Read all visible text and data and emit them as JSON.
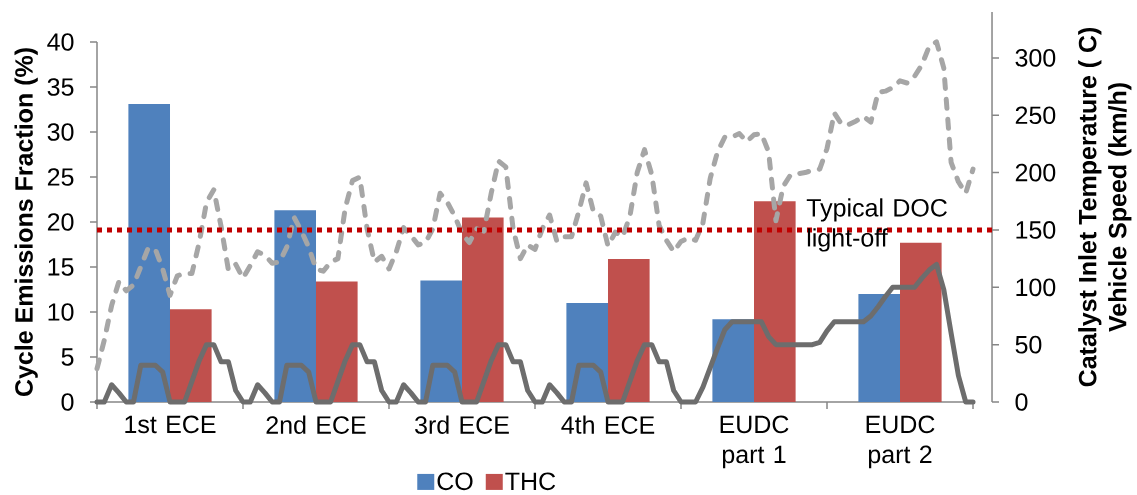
{
  "chart_data": [
    {
      "type": "bar",
      "categories": [
        "1st ECE",
        "2nd ECE",
        "3rd ECE",
        "4th ECE",
        "EUDC part 1",
        "EUDC part 2"
      ],
      "ylabel": "Cycle Emissions Fraction (%)",
      "ylim": [
        0,
        40
      ],
      "yticks": [
        0,
        5,
        10,
        15,
        20,
        25,
        30,
        35,
        40
      ],
      "legend": "bottom",
      "series": [
        {
          "name": "CO",
          "color": "#4f81bd",
          "values": [
            33.1,
            21.3,
            13.5,
            11.0,
            9.2,
            12.0
          ]
        },
        {
          "name": "THC",
          "color": "#c0504d",
          "values": [
            10.3,
            13.4,
            20.5,
            15.9,
            22.3,
            17.7
          ]
        }
      ]
    },
    {
      "type": "line",
      "categories": [
        null,
        null,
        null,
        null,
        null,
        null,
        null,
        null,
        null,
        null,
        null,
        null,
        null,
        null,
        null,
        null,
        null,
        null,
        null,
        null,
        null,
        null,
        null,
        null,
        null,
        null,
        null,
        null,
        null,
        null,
        null,
        null,
        null,
        null,
        null,
        null,
        null,
        null,
        null,
        null,
        null,
        null,
        null,
        null,
        null,
        null,
        null,
        null,
        null,
        null,
        null,
        null,
        null,
        null,
        null,
        null,
        null,
        null,
        null,
        null,
        null,
        null,
        null,
        null,
        null,
        null,
        null,
        null,
        null,
        null,
        null,
        null,
        null,
        null,
        null,
        null,
        null,
        null,
        null,
        null,
        null,
        null,
        null,
        null,
        null,
        null,
        null,
        null,
        null,
        null,
        null,
        null,
        null,
        null,
        null,
        null,
        null,
        null,
        null,
        null,
        null,
        null,
        null,
        null,
        null,
        null,
        null,
        null,
        null,
        null,
        null,
        null,
        null,
        null,
        null,
        null,
        null,
        null,
        null,
        null,
        null
      ],
      "ylabel": "Catalyst Inlet Temperature ( C) Vehicle Speed (km/h)",
      "ylim": [
        0,
        340
      ],
      "yticks": [
        0,
        50,
        100,
        150,
        200,
        250,
        300
      ],
      "tick_labels": "y",
      "series": [
        {
          "color": "#a6a6a6",
          "line_style": "dashed",
          "values": [
            29,
            54,
            84,
            105,
            97,
            102,
            118,
            134,
            133,
            116,
            93,
            110,
            112,
            112,
            139,
            174,
            185,
            153,
            115,
            120,
            108,
            119,
            131,
            128,
            121,
            122,
            135,
            161,
            149,
            135,
            116,
            114,
            122,
            125,
            169,
            193,
            196,
            151,
            122,
            127,
            116,
            131,
            152,
            145,
            137,
            139,
            151,
            182,
            174,
            162,
            147,
            139,
            151,
            149,
            182,
            210,
            205,
            151,
            125,
            137,
            133,
            151,
            163,
            140,
            144,
            144,
            166,
            191,
            166,
            162,
            136,
            148,
            144,
            162,
            200,
            220,
            198,
            154,
            141,
            131,
            140,
            143,
            141,
            156,
            195,
            218,
            231,
            231,
            234,
            227,
            233,
            234,
            218,
            158,
            188,
            198,
            199,
            200,
            202,
            203,
            221,
            252,
            242,
            242,
            245,
            249,
            244,
            270,
            271,
            274,
            280,
            278,
            284,
            294,
            310,
            314,
            291,
            209,
            192,
            182,
            203
          ]
        },
        {
          "color": "#6d6d6d",
          "line_style": "solid",
          "values": [
            0,
            0,
            15,
            8,
            0,
            0,
            32,
            32,
            32,
            26,
            0,
            0,
            0,
            18,
            36,
            50,
            50,
            35,
            35,
            10,
            0,
            0,
            15,
            8,
            0,
            0,
            32,
            32,
            32,
            26,
            0,
            0,
            0,
            18,
            36,
            50,
            50,
            35,
            35,
            10,
            0,
            0,
            15,
            8,
            0,
            0,
            32,
            32,
            32,
            26,
            0,
            0,
            0,
            18,
            36,
            50,
            50,
            35,
            35,
            10,
            0,
            0,
            15,
            8,
            0,
            0,
            32,
            32,
            32,
            26,
            0,
            0,
            0,
            18,
            36,
            50,
            50,
            35,
            35,
            10,
            0,
            0,
            0,
            13,
            30,
            47,
            63,
            70,
            70,
            70,
            70,
            70,
            57,
            50,
            50,
            50,
            50,
            50,
            50,
            52,
            62,
            70,
            70,
            70,
            70,
            70,
            75,
            83,
            92,
            100,
            100,
            100,
            100,
            108,
            115,
            120,
            98,
            60,
            23,
            0,
            0
          ]
        }
      ],
      "ref_lines": [
        {
          "axis": "y",
          "value": 150,
          "label": "Typical DOC light-off",
          "color": "#c00000",
          "line_style": "dotted"
        }
      ]
    }
  ]
}
